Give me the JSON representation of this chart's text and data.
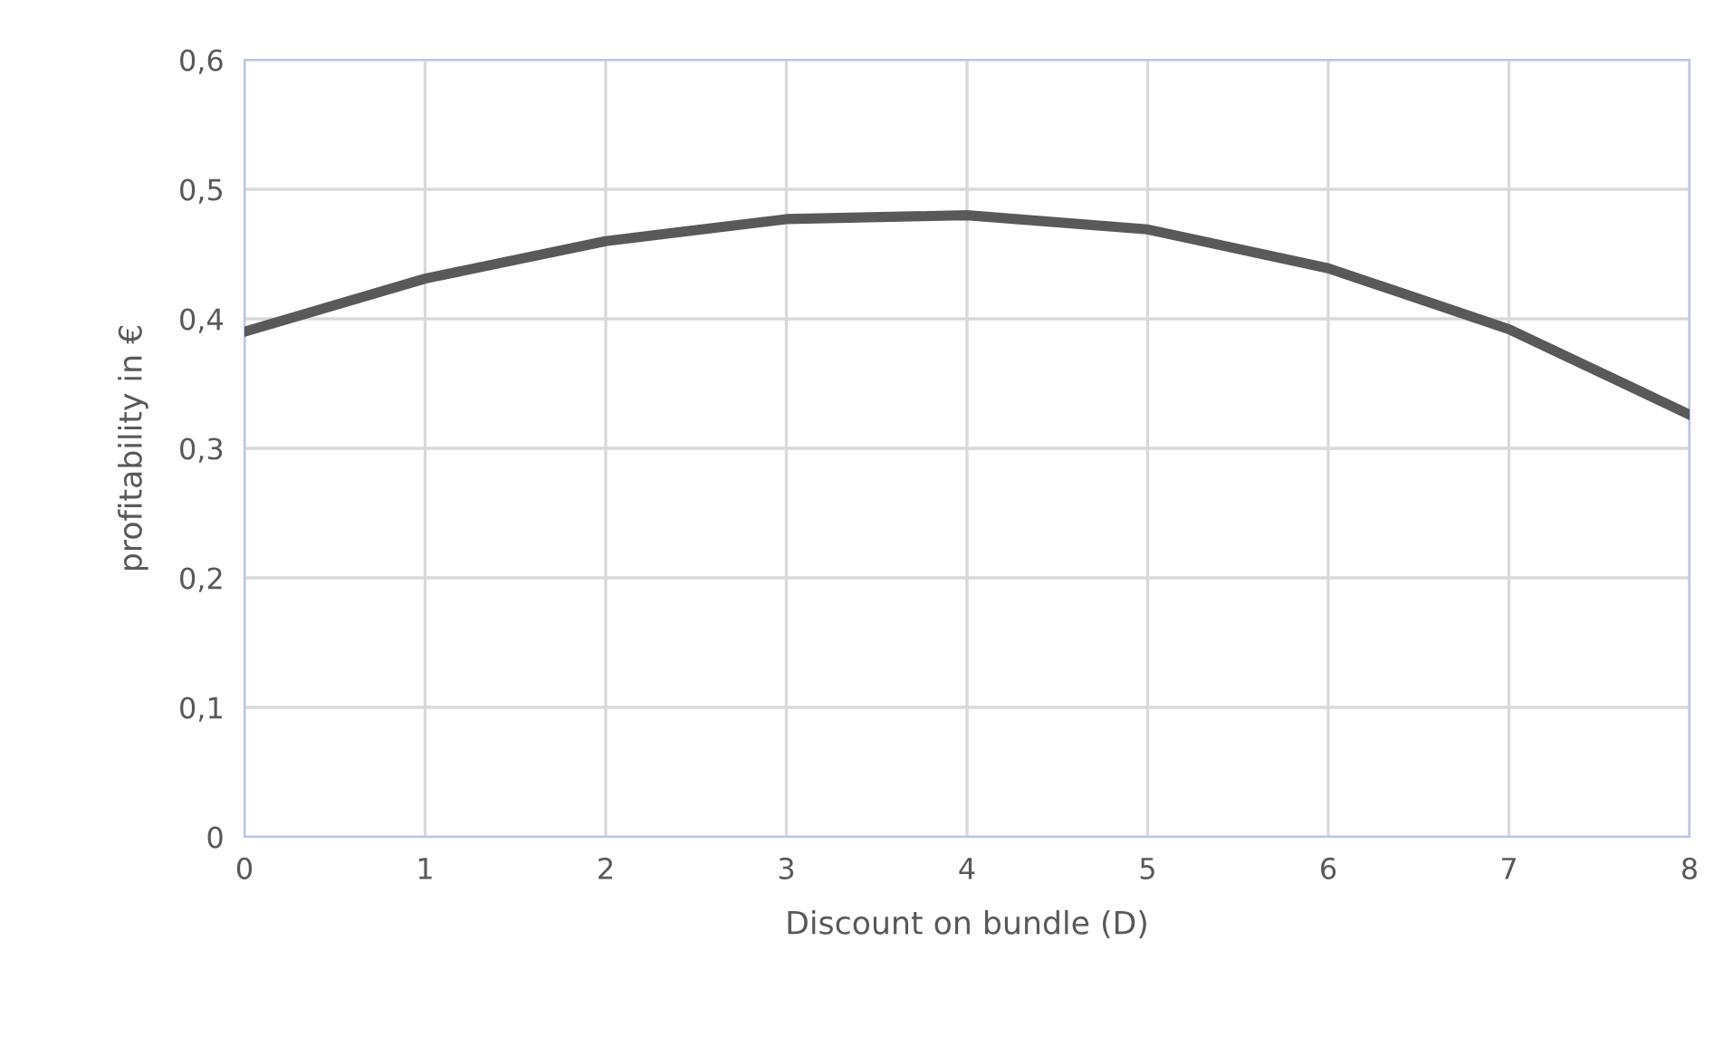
{
  "chart_data": {
    "type": "line",
    "xlabel": "Discount on bundle (D)",
    "ylabel": "profitability in €",
    "x": [
      0,
      1,
      2,
      3,
      4,
      5,
      6,
      7,
      8
    ],
    "series": [
      {
        "color": "#595959",
        "values": [
          0.39,
          0.431,
          0.46,
          0.477,
          0.48,
          0.469,
          0.439,
          0.392,
          0.326
        ]
      }
    ],
    "xlim": [
      0,
      8
    ],
    "xticks": [
      0,
      1,
      2,
      3,
      4,
      5,
      6,
      7,
      8
    ],
    "ylim": [
      0,
      0.6
    ],
    "yticks": [
      0,
      {
        "value": 0.1,
        "label": "0,1"
      },
      {
        "value": 0.2,
        "label": "0,2"
      },
      {
        "value": 0.3,
        "label": "0,3"
      },
      {
        "value": 0.4,
        "label": "0,4"
      },
      {
        "value": 0.5,
        "label": "0,5"
      },
      {
        "value": 0.6,
        "label": "0,6"
      }
    ],
    "grid": true,
    "legend": false,
    "marker": "none",
    "line_style": "solid"
  }
}
